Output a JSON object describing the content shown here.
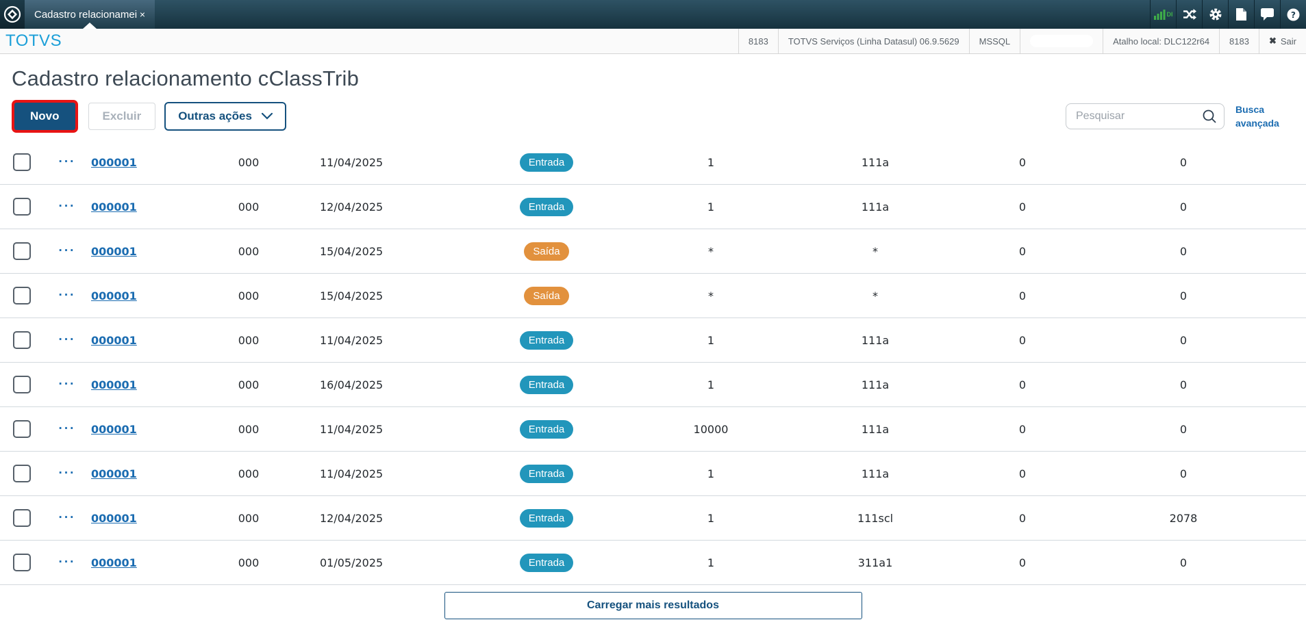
{
  "window": {
    "tab": {
      "title": "Cadastro relacionamei",
      "close": "×"
    },
    "top_icons": {
      "chart_label": "DI"
    }
  },
  "header": {
    "brand": "TOTVS",
    "env_code": "8183",
    "product": "TOTVS Serviços (Linha Datasul) 06.9.5629",
    "database": "MSSQL",
    "shortcut": "Atalho local: DLC122r64",
    "port": "8183",
    "logout_icon": "✖",
    "logout": "Sair"
  },
  "page": {
    "title": "Cadastro relacionamento cClassTrib"
  },
  "toolbar": {
    "novo": "Novo",
    "excluir": "Excluir",
    "outras_acoes": "Outras ações",
    "search_placeholder": "Pesquisar",
    "busca_line1": "Busca",
    "busca_line2": "avançada"
  },
  "colors": {
    "primary": "#15517e",
    "link": "#1b6cb1",
    "annotation_red": "#e81414",
    "entrada_badge": "#2296bb",
    "saida_badge": "#e2913d",
    "brand_blue": "#1b9fd8"
  },
  "statuses": {
    "entrada": {
      "label": "Entrada",
      "color": "#2296bb"
    },
    "saida": {
      "label": "Saída",
      "color": "#e2913d"
    }
  },
  "table": {
    "actions_icon": "···",
    "rows": [
      {
        "code_link": "000001",
        "series": "000",
        "date": "11/04/2025",
        "status": "entrada",
        "quantity": "1",
        "cclass": "111a",
        "value1": "0",
        "value2": "0"
      },
      {
        "code_link": "000001",
        "series": "000",
        "date": "12/04/2025",
        "status": "entrada",
        "quantity": "1",
        "cclass": "111a",
        "value1": "0",
        "value2": "0"
      },
      {
        "code_link": "000001",
        "series": "000",
        "date": "15/04/2025",
        "status": "saida",
        "quantity": "*",
        "cclass": "*",
        "value1": "0",
        "value2": "0"
      },
      {
        "code_link": "000001",
        "series": "000",
        "date": "15/04/2025",
        "status": "saida",
        "quantity": "*",
        "cclass": "*",
        "value1": "0",
        "value2": "0"
      },
      {
        "code_link": "000001",
        "series": "000",
        "date": "11/04/2025",
        "status": "entrada",
        "quantity": "1",
        "cclass": "111a",
        "value1": "0",
        "value2": "0"
      },
      {
        "code_link": "000001",
        "series": "000",
        "date": "16/04/2025",
        "status": "entrada",
        "quantity": "1",
        "cclass": "111a",
        "value1": "0",
        "value2": "0"
      },
      {
        "code_link": "000001",
        "series": "000",
        "date": "11/04/2025",
        "status": "entrada",
        "quantity": "10000",
        "cclass": "111a",
        "value1": "0",
        "value2": "0"
      },
      {
        "code_link": "000001",
        "series": "000",
        "date": "11/04/2025",
        "status": "entrada",
        "quantity": "1",
        "cclass": "111a",
        "value1": "0",
        "value2": "0"
      },
      {
        "code_link": "000001",
        "series": "000",
        "date": "12/04/2025",
        "status": "entrada",
        "quantity": "1",
        "cclass": "111scl",
        "value1": "0",
        "value2": "2078"
      },
      {
        "code_link": "000001",
        "series": "000",
        "date": "01/05/2025",
        "status": "entrada",
        "quantity": "1",
        "cclass": "311a1",
        "value1": "0",
        "value2": "0"
      }
    ]
  },
  "footer": {
    "load_more": "Carregar mais resultados"
  }
}
